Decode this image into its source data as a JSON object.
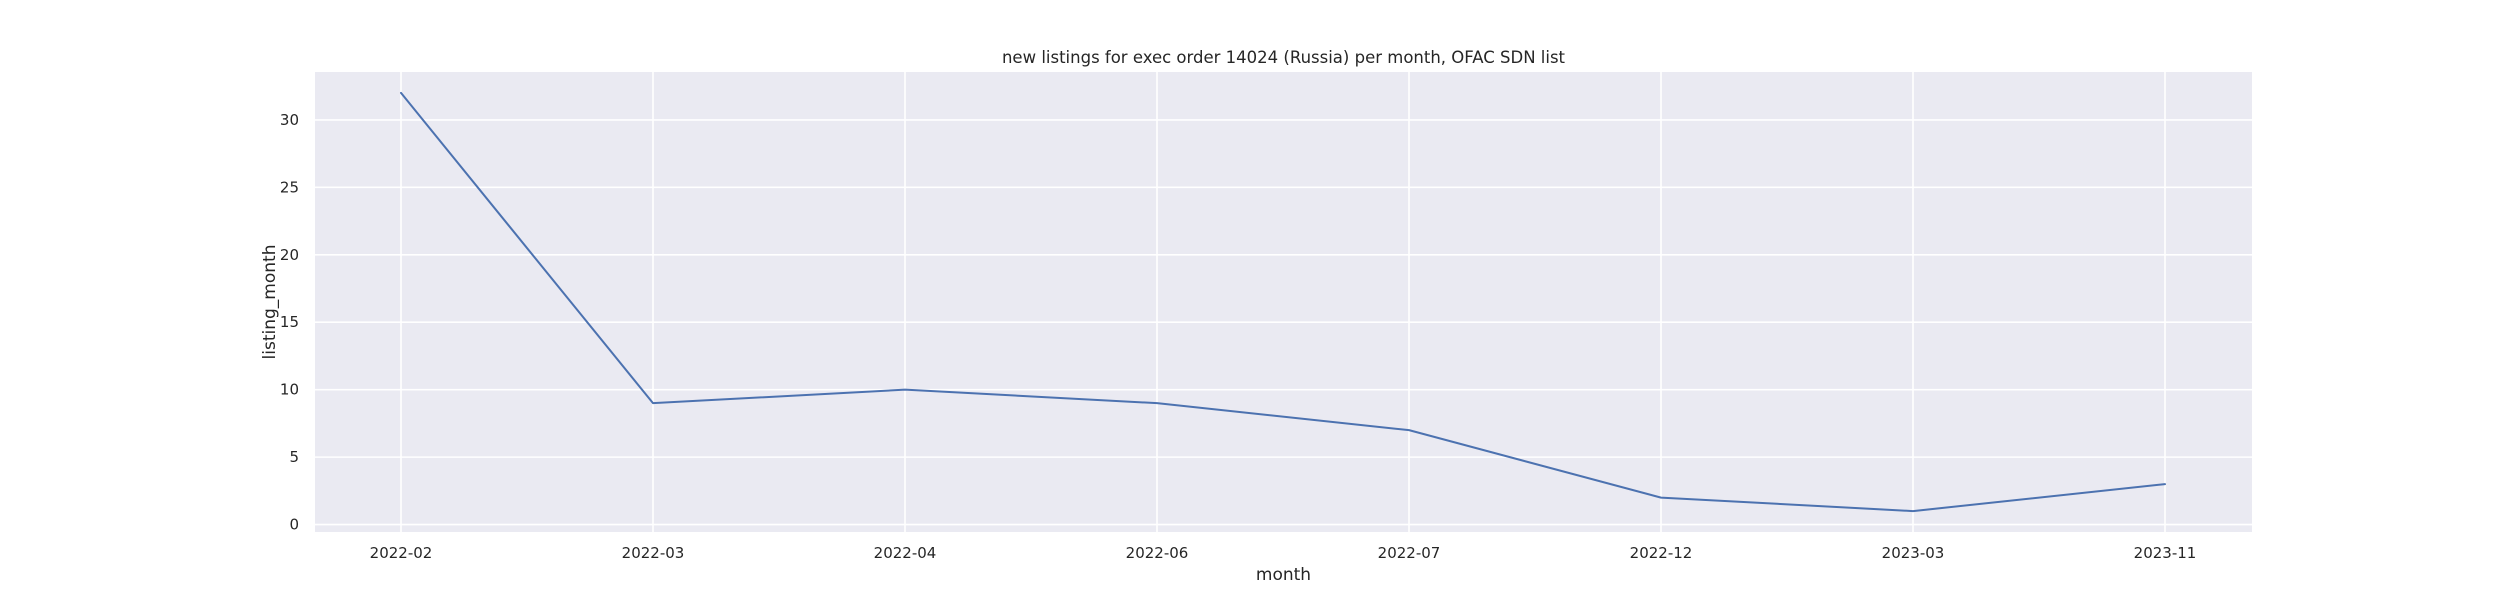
{
  "chart_data": {
    "type": "line",
    "title": "new listings for exec order 14024 (Russia) per month, OFAC SDN list",
    "xlabel": "month",
    "ylabel": "listing_month",
    "categories": [
      "2022-02",
      "2022-03",
      "2022-04",
      "2022-06",
      "2022-07",
      "2022-12",
      "2023-03",
      "2023-11"
    ],
    "series": [
      {
        "values": [
          32,
          9,
          10,
          9,
          7,
          2,
          1,
          3
        ]
      }
    ],
    "ylim": [
      -0.55,
      33.55
    ],
    "yticks": [
      0,
      5,
      10,
      15,
      20,
      25,
      30
    ],
    "grid": true,
    "legend": "none"
  },
  "colors": {
    "background": "#ffffff",
    "plot_area": "#eaeaf2",
    "grid": "#ffffff",
    "line": "#4c72b0",
    "text": "#262626"
  }
}
